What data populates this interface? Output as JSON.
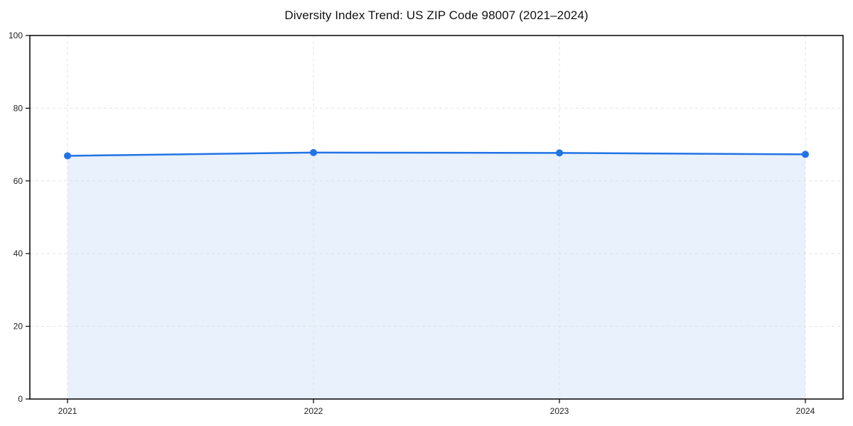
{
  "chart_data": {
    "type": "area",
    "title": "Diversity Index Trend: US ZIP Code 98007 (2021–2024)",
    "categories": [
      "2021",
      "2022",
      "2023",
      "2024"
    ],
    "values": [
      66.9,
      67.8,
      67.7,
      67.3
    ],
    "series_name": "Diversity Index",
    "xlabel": "",
    "ylabel": "",
    "ylim": [
      0,
      100
    ],
    "yticks": [
      0,
      20,
      40,
      60,
      80,
      100
    ],
    "grid": "dashed-both-axes",
    "legend": "none",
    "marker": "circle",
    "colors": {
      "line": "#2273e6",
      "marker": "#2273e6",
      "fill": "#2273e6",
      "fill_opacity": 0.1,
      "grid": "#e2e2e2",
      "axis": "#000000",
      "tick_text": "#222222",
      "background": "#ffffff"
    }
  }
}
